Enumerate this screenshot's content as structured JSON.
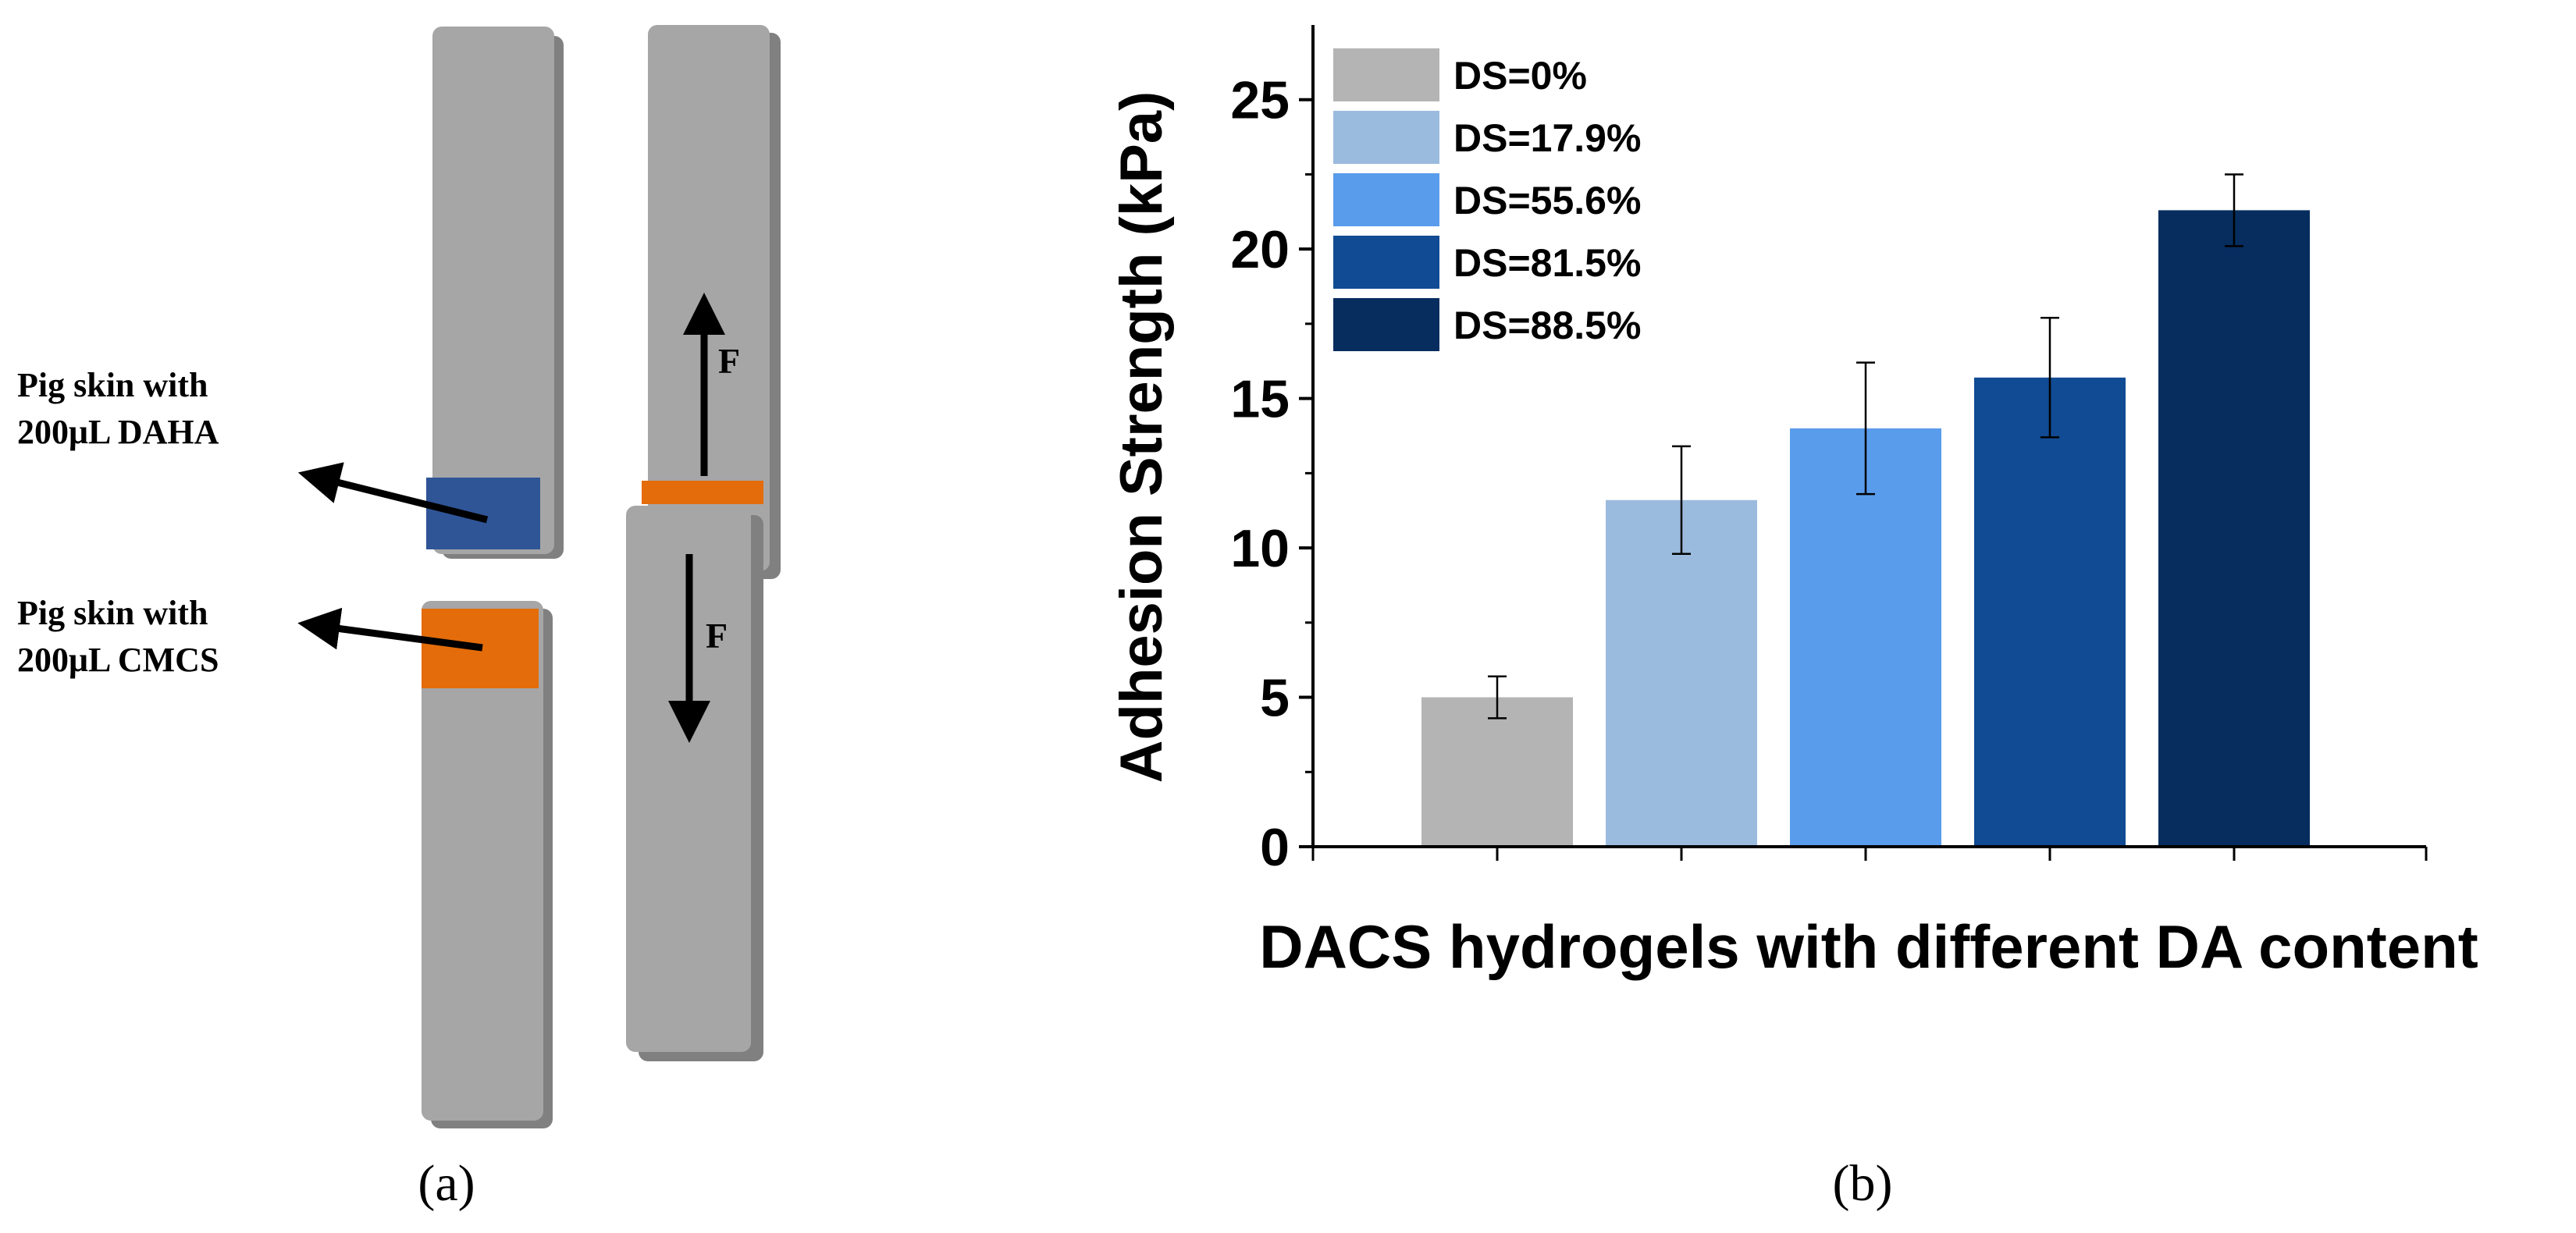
{
  "panel_a": {
    "label": "(a)",
    "annotation_dah": {
      "line1": "Pig skin with",
      "line2": "200μL DAHA"
    },
    "annotation_cmcs": {
      "line1": "Pig skin with",
      "line2": "200μL CMCS"
    },
    "force_up": "F",
    "force_down": "F",
    "colors": {
      "strip": "#a6a6a6",
      "strip_edge": "#808080",
      "daha": "#2f5597",
      "cmcs": "#e46c0a"
    }
  },
  "panel_b": {
    "label": "(b)"
  },
  "chart_data": {
    "type": "bar",
    "title": "",
    "xlabel": "DACS hydrogels with different DA content",
    "ylabel": "Adhesion Strength (kPa)",
    "ylim": [
      0,
      27.5
    ],
    "yticks": [
      0,
      5,
      10,
      15,
      20,
      25
    ],
    "ytick_labels": [
      "0",
      "5",
      "10",
      "15",
      "20",
      "25"
    ],
    "categories": [
      "DS=0%",
      "DS=17.9%",
      "DS=55.6%",
      "DS=81.5%",
      "DS=88.5%"
    ],
    "values": [
      5.0,
      11.6,
      14.0,
      15.7,
      21.3
    ],
    "errors": [
      0.7,
      1.8,
      2.2,
      2.0,
      1.2
    ],
    "colors": [
      "#b4b4b4",
      "#9bbbde",
      "#5a9cec",
      "#104b93",
      "#062d5e"
    ],
    "legend": [
      "DS=0%",
      "DS=17.9%",
      "DS=55.6%",
      "DS=81.5%",
      "DS=88.5%"
    ],
    "legend_position": "top-left",
    "grid": false
  }
}
